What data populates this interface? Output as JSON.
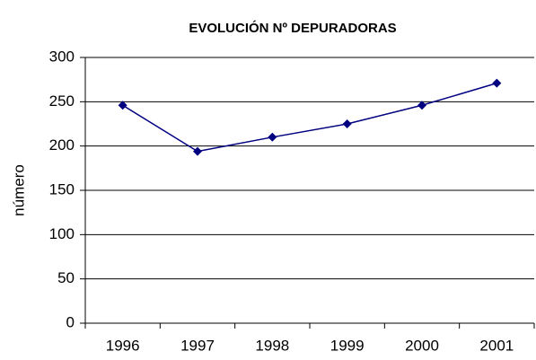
{
  "chart_data": {
    "type": "line",
    "title": "EVOLUCIÓN Nº DEPURADORAS",
    "y_label": "número",
    "categories": [
      "1996",
      "1997",
      "1998",
      "1999",
      "2000",
      "2001"
    ],
    "values": [
      246,
      194,
      210,
      225,
      246,
      271
    ],
    "color": "#000080",
    "ylim": [
      0,
      300
    ],
    "yticks": [
      0,
      50,
      100,
      150,
      200,
      250,
      300
    ],
    "grid": true
  }
}
